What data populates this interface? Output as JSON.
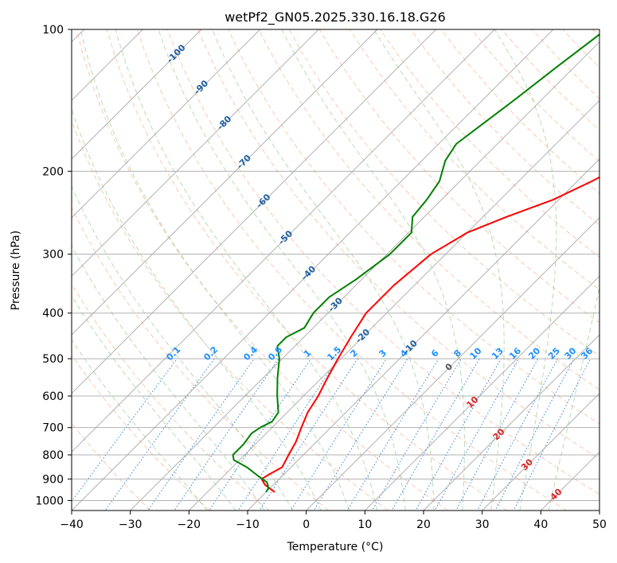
{
  "colors": {
    "temperature": "#ff0000",
    "dewpoint": "#008000",
    "isotherm": "#a9a9a9",
    "isobar": "#a9a9a9",
    "dry_adiabat": "#f4a582",
    "moist_adiabat": "#99cc99",
    "mixing_ratio": "#1f77d4",
    "mixing_label": "#1e90ff",
    "isotherm_label_cold": "#1f5f9f",
    "isotherm_label_warm": "#d62728",
    "zero_label": "#555555",
    "frame": "#000000"
  },
  "chart_data": {
    "type": "line",
    "title": "wetPf2_GN05.2025.330.16.18.G26",
    "xlabel": "Temperature (°C)",
    "ylabel": "Pressure (hPa)",
    "xlim": [
      -40,
      50
    ],
    "ylim": [
      1050,
      100
    ],
    "y_scale": "log",
    "skew": true,
    "grid": true,
    "x_ticks": [
      -40,
      -30,
      -20,
      -10,
      0,
      10,
      20,
      30,
      40,
      50
    ],
    "x_tick_labels": [
      "−40",
      "−30",
      "−20",
      "−10",
      "0",
      "10",
      "20",
      "30",
      "40",
      "50"
    ],
    "y_ticks": [
      1000,
      900,
      800,
      700,
      600,
      500,
      400,
      300,
      200,
      100
    ],
    "y_tick_labels": [
      "1000",
      "900",
      "800",
      "700",
      "600",
      "500",
      "400",
      "300",
      "200",
      "100"
    ],
    "isotherm_labels": [
      "-100",
      "-90",
      "-80",
      "-70",
      "-60",
      "-50",
      "-40",
      "-30",
      "-20",
      "-10",
      "0",
      "10",
      "20",
      "30",
      "40"
    ],
    "mixing_ratio_labels": [
      "0.1",
      "0.2",
      "0.4",
      "0.6",
      "1",
      "1.5",
      "2",
      "3",
      "4",
      "6",
      "8",
      "10",
      "13",
      "16",
      "20",
      "25",
      "30",
      "36"
    ],
    "series": [
      {
        "key": "temperature",
        "p": [
          960,
          925,
          900,
          880,
          850,
          800,
          750,
          700,
          650,
          600,
          550,
          500,
          450,
          400,
          350,
          300,
          270,
          250,
          230,
          210,
          200,
          180,
          160,
          140,
          120,
          110,
          100
        ],
        "t": [
          -8.5,
          -11.5,
          -13.0,
          -12.5,
          -11.5,
          -12.5,
          -13.5,
          -15.0,
          -16.5,
          -17.5,
          -19.0,
          -20.5,
          -22.0,
          -23.5,
          -23.5,
          -22.5,
          -20.0,
          -16.0,
          -11.0,
          -7.5,
          -6.0,
          -3.8,
          -1.8,
          0.0,
          2.8,
          4.0,
          5.0
        ]
      },
      {
        "key": "dewpoint",
        "p": [
          960,
          940,
          915,
          890,
          850,
          820,
          800,
          760,
          720,
          700,
          680,
          650,
          600,
          550,
          500,
          470,
          450,
          430,
          400,
          370,
          340,
          300,
          270,
          250,
          230,
          210,
          190,
          175,
          160,
          140,
          120,
          100
        ],
        "t": [
          -10.0,
          -10.3,
          -11.5,
          -13.8,
          -17.5,
          -21.0,
          -22.0,
          -22.0,
          -22.5,
          -22.0,
          -21.0,
          -21.5,
          -24.5,
          -27.5,
          -30.5,
          -33.0,
          -33.0,
          -31.5,
          -32.5,
          -32.5,
          -31.0,
          -29.5,
          -29.5,
          -32.0,
          -32.5,
          -33.5,
          -36.0,
          -37.0,
          -36.0,
          -34.5,
          -33.0,
          -31.0
        ]
      }
    ]
  }
}
